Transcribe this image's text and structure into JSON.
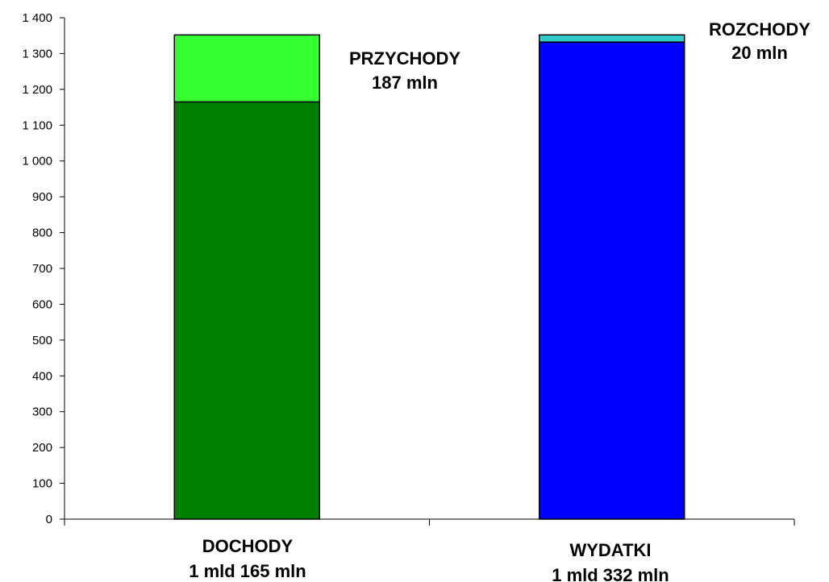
{
  "chart_data": {
    "type": "bar",
    "stacked": true,
    "ylim": [
      0,
      1400
    ],
    "yticks": [
      0,
      100,
      200,
      300,
      400,
      500,
      600,
      700,
      800,
      900,
      1000,
      1100,
      1200,
      1300,
      1400
    ],
    "ytick_labels": [
      "0",
      "100",
      "200",
      "300",
      "400",
      "500",
      "600",
      "700",
      "800",
      "900",
      "1 000",
      "1 100",
      "1 200",
      "1 300",
      "1 400"
    ],
    "grid": false,
    "categories": [
      {
        "line1": "DOCHODY",
        "line2": "1 mld 165 mln"
      },
      {
        "line1": "WYDATKI",
        "line2": "1 mld 332 mln"
      }
    ],
    "bars": [
      {
        "category_index": 0,
        "segments": [
          {
            "value": 1165,
            "color": "#008000"
          },
          {
            "value": 187,
            "color": "#33ff33"
          }
        ]
      },
      {
        "category_index": 1,
        "segments": [
          {
            "value": 1332,
            "color": "#0000ff"
          },
          {
            "value": 20,
            "color": "#33cccc"
          }
        ]
      }
    ],
    "annotations": [
      {
        "line1": "PRZYCHODY",
        "line2": "187 mln"
      },
      {
        "line1": "ROZCHODY",
        "line2": "20 mln"
      }
    ]
  }
}
